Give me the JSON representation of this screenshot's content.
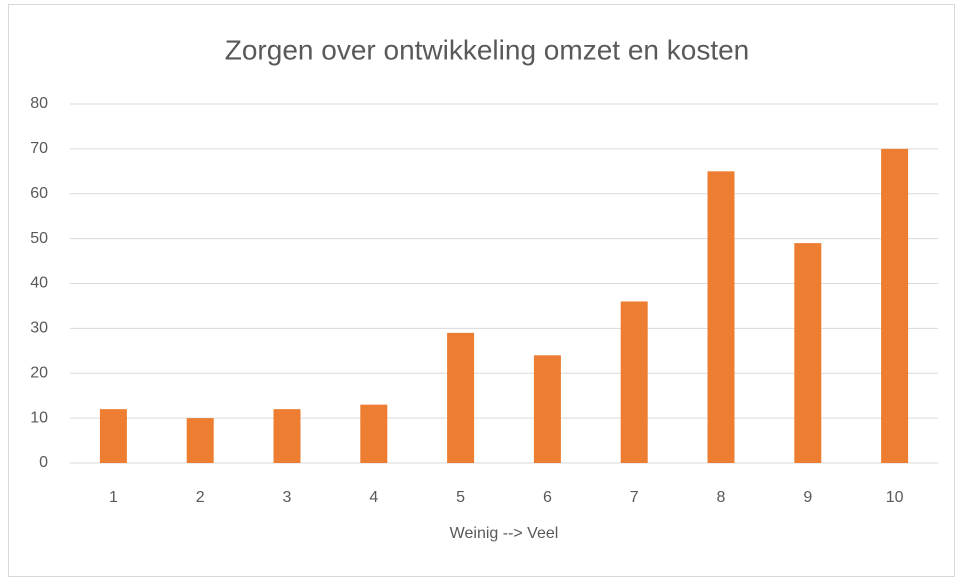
{
  "chart_data": {
    "type": "bar",
    "title": "Zorgen over ontwikkeling omzet en kosten",
    "x_label": "Weinig --> Veel",
    "categories": [
      "1",
      "2",
      "3",
      "4",
      "5",
      "6",
      "7",
      "8",
      "9",
      "10"
    ],
    "values": [
      12,
      10,
      12,
      13,
      29,
      24,
      36,
      65,
      49,
      70
    ],
    "color": "#ed7d31",
    "ylim": [
      0,
      80
    ],
    "yticks": [
      0,
      10,
      20,
      30,
      40,
      50,
      60,
      70,
      80
    ],
    "grid": true
  }
}
